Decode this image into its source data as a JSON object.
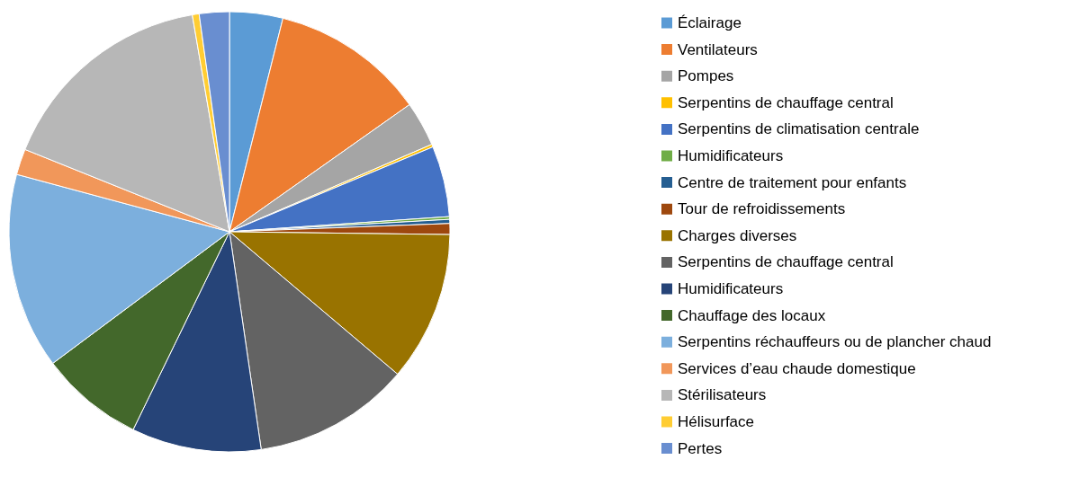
{
  "chart_data": {
    "type": "pie",
    "legend": "right",
    "categories": [
      "Éclairage",
      "Ventilateurs",
      "Pompes",
      "Serpentins de chauffage central",
      "Serpentins de climatisation centrale",
      "Humidificateurs",
      "Centre de traitement pour enfants",
      "Tour de refroidissements",
      "Charges diverses",
      "Serpentins de chauffage central",
      "Humidificateurs",
      "Chauffage des locaux",
      "Serpentins réchauffeurs ou de plancher chaud",
      "Services d’eau chaude domestique",
      "Stérilisateurs",
      "Hélisurface",
      "Pertes"
    ],
    "values": [
      3.9,
      11.3,
      3.3,
      0.2,
      5.2,
      0.2,
      0.3,
      0.8,
      11,
      11.5,
      9.5,
      7.6,
      14.4,
      1.9,
      16.2,
      0.5,
      2.2
    ],
    "colors": [
      "#5b9bd5",
      "#ed7d31",
      "#a5a5a5",
      "#ffc000",
      "#4472c4",
      "#70ad47",
      "#255e91",
      "#9e480e",
      "#997300",
      "#636363",
      "#264478",
      "#43682b",
      "#7cafdd",
      "#f1975a",
      "#b7b7b7",
      "#ffcd33",
      "#698ed0"
    ]
  }
}
